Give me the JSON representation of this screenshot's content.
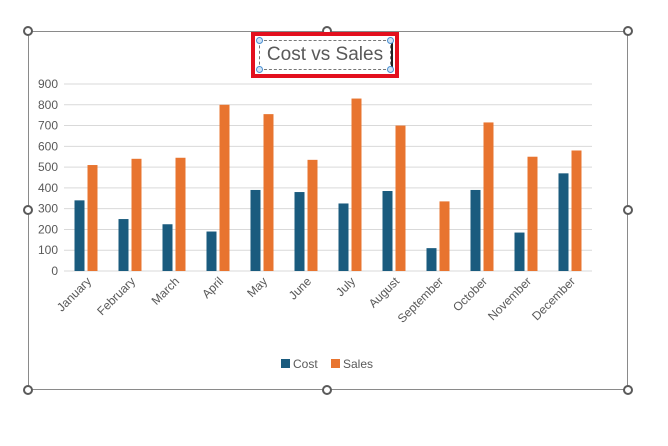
{
  "chart_data": {
    "type": "bar",
    "title": "Cost vs Sales",
    "categories": [
      "January",
      "February",
      "March",
      "April",
      "May",
      "June",
      "July",
      "August",
      "September",
      "October",
      "November",
      "December"
    ],
    "series": [
      {
        "name": "Cost",
        "color": "#1a5b7e",
        "values": [
          340,
          250,
          225,
          190,
          390,
          380,
          325,
          385,
          110,
          390,
          185,
          470
        ]
      },
      {
        "name": "Sales",
        "color": "#e8742f",
        "values": [
          510,
          540,
          545,
          800,
          755,
          535,
          830,
          700,
          335,
          715,
          550,
          580
        ]
      }
    ],
    "ylim": [
      0,
      900
    ],
    "yticks": [
      0,
      100,
      200,
      300,
      400,
      500,
      600,
      700,
      800,
      900
    ],
    "grid": true,
    "legend_position": "bottom"
  }
}
